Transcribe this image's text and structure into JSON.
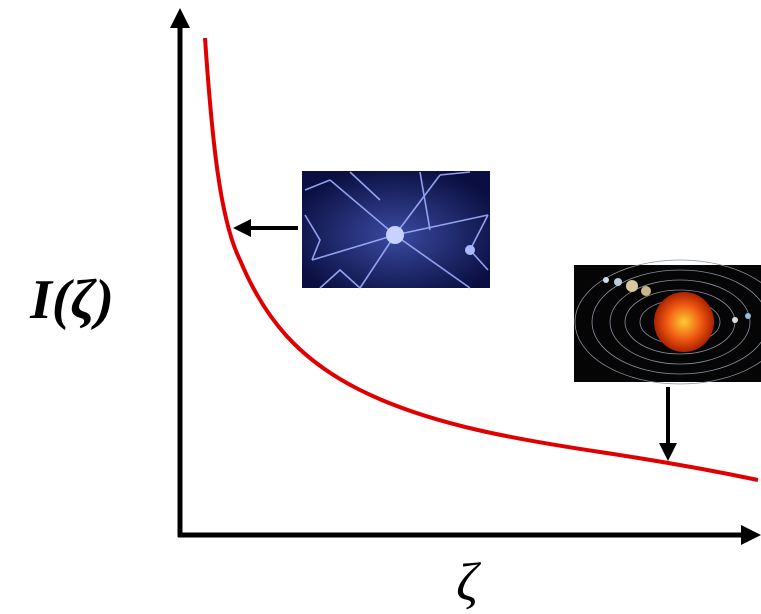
{
  "y_axis_label": "I(ζ)",
  "x_axis_label": "ζ"
}
